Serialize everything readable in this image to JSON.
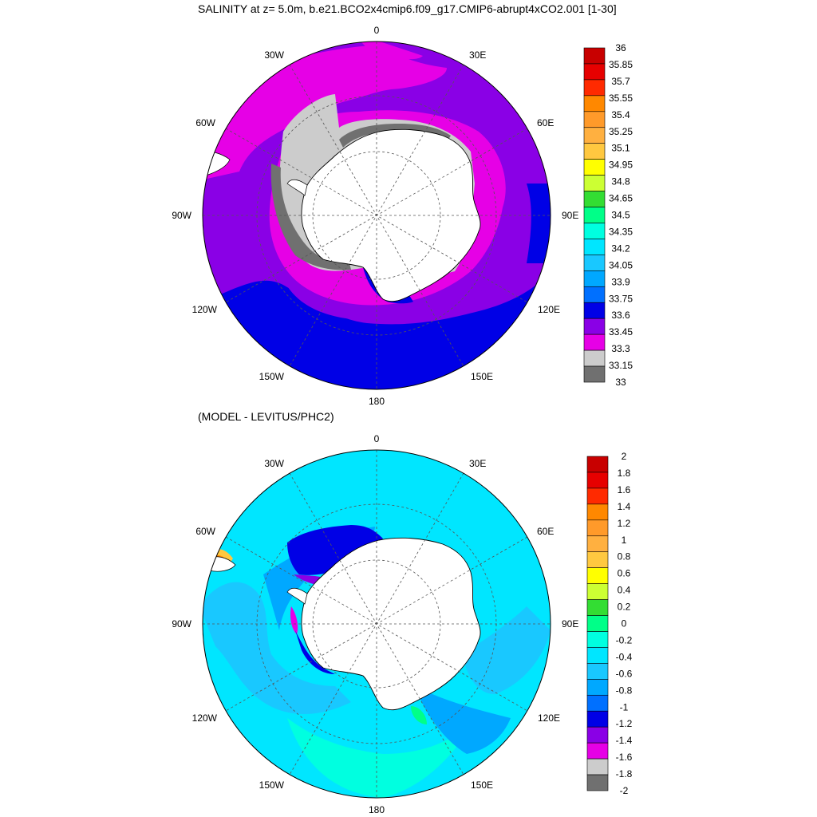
{
  "titles": {
    "main": "SALINITY at z=   5.0m, b.e21.BCO2x4cmip6.f09_g17.CMIP6-abrupt4xCO2.001 [1-30]",
    "diff": "(MODEL - LEVITUS/PHC2)"
  },
  "map_labels": {
    "top": "0",
    "bottom": "180",
    "left": "90W",
    "right": "90E",
    "upper_left_30": "30W",
    "upper_left_60": "60W",
    "upper_right_30": "30E",
    "upper_right_60": "60E",
    "lower_left_120": "120W",
    "lower_left_150": "150W",
    "lower_right_120": "120E",
    "lower_right_150": "150E"
  },
  "colorbar_salinity": {
    "labels": [
      "36",
      "35.85",
      "35.7",
      "35.55",
      "35.4",
      "35.25",
      "35.1",
      "34.95",
      "34.8",
      "34.65",
      "34.5",
      "34.35",
      "34.2",
      "34.05",
      "33.9",
      "33.75",
      "33.6",
      "33.45",
      "33.3",
      "33.15",
      "33"
    ],
    "colors": [
      "#c80000",
      "#e60000",
      "#ff2a00",
      "#ff8800",
      "#ff9a2a",
      "#ffb040",
      "#ffc840",
      "#ffff00",
      "#ccff33",
      "#33dd33",
      "#00ff88",
      "#00ffe0",
      "#00e6ff",
      "#19c8ff",
      "#00a8ff",
      "#0070ff",
      "#0000e6",
      "#8a00e6",
      "#e600e6",
      "#cccccc",
      "#707070"
    ]
  },
  "colorbar_diff": {
    "labels": [
      "2",
      "1.8",
      "1.6",
      "1.4",
      "1.2",
      "1",
      "0.8",
      "0.6",
      "0.4",
      "0.2",
      "0",
      "-0.2",
      "-0.4",
      "-0.6",
      "-0.8",
      "-1",
      "-1.2",
      "-1.4",
      "-1.6",
      "-1.8",
      "-2"
    ],
    "colors": [
      "#c80000",
      "#e60000",
      "#ff2a00",
      "#ff8800",
      "#ff9a2a",
      "#ffb040",
      "#ffc840",
      "#ffff00",
      "#ccff33",
      "#33dd33",
      "#00ff88",
      "#00ffe0",
      "#00e6ff",
      "#19c8ff",
      "#00a8ff",
      "#0070ff",
      "#0000e6",
      "#8a00e6",
      "#e600e6",
      "#cccccc",
      "#707070"
    ]
  },
  "colors": {
    "land": "#ffffff",
    "coast": "#000000"
  }
}
